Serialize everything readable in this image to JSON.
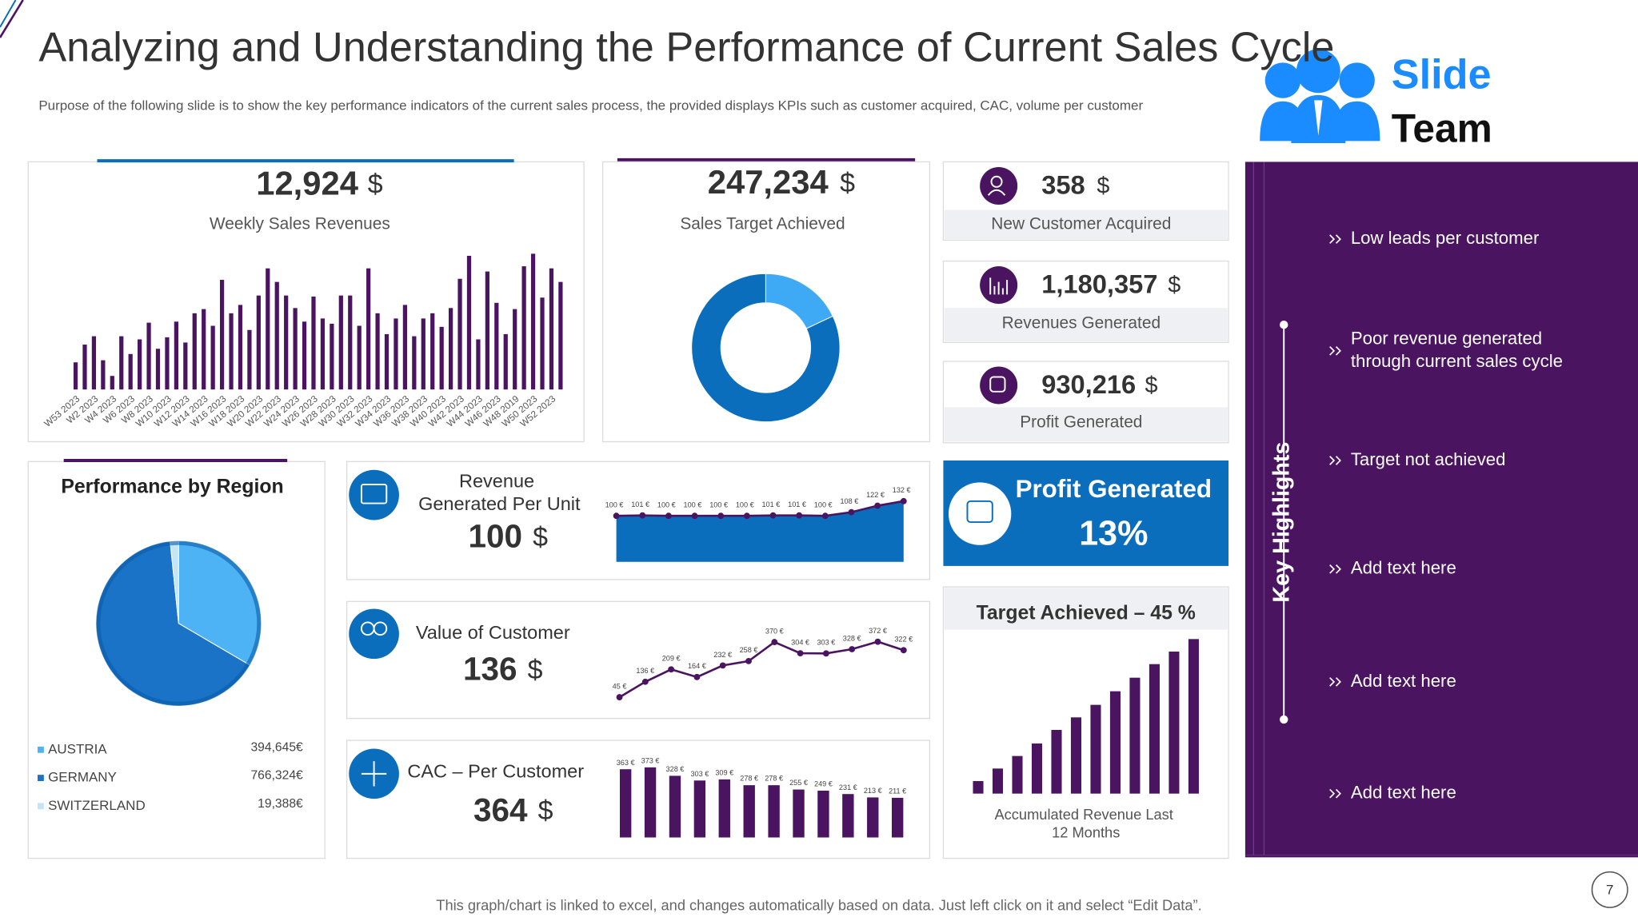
{
  "title": "Analyzing and Understanding the Performance of Current Sales Cycle",
  "subtitle": "Purpose of the following slide is to show the key performance indicators of the current sales process, the provided displays KPIs such as customer acquired, CAC, volume per customer",
  "logo": {
    "line1": "Slide",
    "line2": "Team"
  },
  "kpis": [
    {
      "value": "12,924",
      "unit": "$",
      "label": "Weekly Sales Revenues"
    },
    {
      "value": "247,234",
      "unit": "$",
      "label": "Sales Target Achieved"
    },
    {
      "value": "358",
      "unit": "$",
      "label": "New Customer Acquired"
    },
    {
      "value": "1,180,357",
      "unit": "$",
      "label": "Revenues Generated"
    },
    {
      "value": "930,216",
      "unit": "$",
      "label": "Profit Generated"
    }
  ],
  "profit_card": {
    "title": "Profit Generated",
    "value": "13%"
  },
  "unit_cards": [
    {
      "title": "Revenue Generated Per Unit",
      "value": "100",
      "unit": "$"
    },
    {
      "title": "Value of Customer",
      "value": "136",
      "unit": "$"
    },
    {
      "title": "CAC – Per Customer",
      "value": "364",
      "unit": "$"
    }
  ],
  "highlights": {
    "title": "Key Highlights",
    "items": [
      "Low leads per customer",
      "Poor revenue generated through current sales cycle",
      "Target not achieved",
      "Add text here",
      "Add text here",
      "Add text here"
    ]
  },
  "footer": "This graph/chart is linked to excel, and changes automatically based on data. Just left click on it and select “Edit Data”.",
  "page_number": "7",
  "chart_data": [
    {
      "type": "bar",
      "categories": [
        "W53 2023",
        null,
        "W2 2023",
        null,
        "W4 2023",
        null,
        "W6 2023",
        null,
        "W8 2023",
        null,
        "W10 2023",
        null,
        "W12 2023",
        null,
        "W14 2023",
        null,
        "W16 2023",
        null,
        "W18 2023",
        null,
        "W20 2023",
        null,
        "W22 2023",
        null,
        "W24 2023",
        null,
        "W26 2023",
        null,
        "W28 2023",
        null,
        "W30 2023",
        null,
        "W32 2023",
        null,
        "W34 2023",
        null,
        "W36 2023",
        null,
        "W38 2023",
        null,
        "W40 2023",
        null,
        "W42 2023",
        null,
        "W44 2023",
        null,
        "W46 2023",
        null,
        "W48 2019",
        null,
        "W50 2023",
        null,
        "W52 2023",
        null
      ],
      "values": [
        26,
        43,
        51,
        28,
        13,
        51,
        34,
        48,
        64,
        39,
        50,
        65,
        45,
        73,
        77,
        61,
        105,
        73,
        81,
        57,
        90,
        116,
        103,
        90,
        78,
        65,
        89,
        68,
        63,
        90,
        90,
        61,
        116,
        73,
        53,
        68,
        81,
        51,
        68,
        73,
        60,
        78,
        106,
        128,
        48,
        113,
        83,
        53,
        77,
        118,
        130,
        88,
        116,
        103
      ],
      "color": "#4a1461",
      "ylim": [
        0,
        130
      ]
    },
    {
      "type": "donut",
      "values": [
        18,
        82
      ],
      "colors": [
        "#3ea9f5",
        "#0a6ebd"
      ]
    },
    {
      "type": "pie",
      "title": "Performance by Region",
      "categories": [
        "AUSTRIA",
        "GERMANY",
        "SWITZERLAND"
      ],
      "values": [
        394645,
        766324,
        19388
      ],
      "value_labels": [
        "394,645€",
        "766,324€",
        "19,388€"
      ],
      "colors": [
        "#4db3f5",
        "#1a73c7",
        "#c5e4f7"
      ]
    },
    {
      "type": "area",
      "values": [
        100,
        101,
        100,
        100,
        100,
        100,
        101,
        101,
        100,
        108,
        122,
        132
      ],
      "value_labels": [
        "100 €",
        "101 €",
        "100 €",
        "100 €",
        "100 €",
        "100 €",
        "101 €",
        "101 €",
        "100 €",
        "108 €",
        "122 €",
        "132 €"
      ],
      "color": "#0a6ebd",
      "line_color": "#4a1461",
      "ylim": [
        0,
        140
      ]
    },
    {
      "type": "line",
      "values": [
        45,
        136,
        209,
        164,
        232,
        258,
        370,
        304,
        303,
        328,
        372,
        322
      ],
      "value_labels": [
        "45 €",
        "136 €",
        "209 €",
        "164 €",
        "232 €",
        "258 €",
        "370 €",
        "304 €",
        "303 €",
        "328 €",
        "372 €",
        "322 €"
      ],
      "color": "#4a1461",
      "ylim": [
        0,
        400
      ]
    },
    {
      "type": "bar",
      "values": [
        363,
        373,
        328,
        303,
        309,
        278,
        278,
        255,
        249,
        231,
        213,
        211
      ],
      "value_labels": [
        "363 €",
        "373 €",
        "328 €",
        "303 €",
        "309 €",
        "278 €",
        "278 €",
        "255 €",
        "249 €",
        "231 €",
        "213 €",
        "211 €"
      ],
      "color": "#4a1461",
      "ylim": [
        0,
        400
      ]
    },
    {
      "type": "bar",
      "title": "Target Achieved – 45 %",
      "xlabel": "Accumulated Revenue Last 12 Months",
      "values": [
        12,
        24,
        36,
        48,
        61,
        73,
        85,
        98,
        111,
        124,
        136,
        148
      ],
      "color": "#4a1461",
      "ylim": [
        0,
        150
      ]
    }
  ]
}
